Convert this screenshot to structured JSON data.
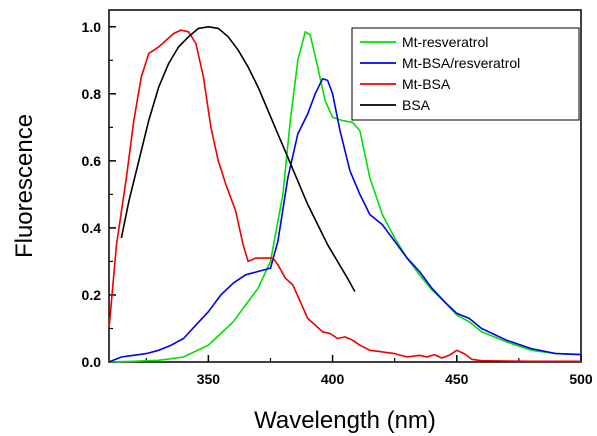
{
  "chart_data": {
    "type": "line",
    "xlabel": "Wavelength (nm)",
    "ylabel": "Fluorescence",
    "xlim": [
      310,
      500
    ],
    "ylim": [
      0,
      1.05
    ],
    "xticks": [
      350,
      400,
      450,
      500
    ],
    "yticks": [
      0.0,
      0.2,
      0.4,
      0.6,
      0.8,
      1.0
    ],
    "xtick_labels": [
      "350",
      "400",
      "450",
      "500"
    ],
    "ytick_labels": [
      "0.0",
      "0.2",
      "0.4",
      "0.6",
      "0.8",
      "1.0"
    ],
    "grid": false,
    "legend_position": "top-right",
    "series": [
      {
        "name": "Mt-resveratrol",
        "color": "#00e000",
        "points": [
          [
            310,
            0.0
          ],
          [
            320,
            0.002
          ],
          [
            330,
            0.005
          ],
          [
            340,
            0.015
          ],
          [
            350,
            0.05
          ],
          [
            355,
            0.085
          ],
          [
            360,
            0.12
          ],
          [
            365,
            0.17
          ],
          [
            370,
            0.22
          ],
          [
            375,
            0.3
          ],
          [
            380,
            0.5
          ],
          [
            383,
            0.72
          ],
          [
            386,
            0.9
          ],
          [
            389,
            0.985
          ],
          [
            391,
            0.975
          ],
          [
            394,
            0.88
          ],
          [
            397,
            0.78
          ],
          [
            400,
            0.73
          ],
          [
            404,
            0.72
          ],
          [
            408,
            0.715
          ],
          [
            411,
            0.69
          ],
          [
            415,
            0.55
          ],
          [
            420,
            0.44
          ],
          [
            425,
            0.37
          ],
          [
            430,
            0.31
          ],
          [
            435,
            0.26
          ],
          [
            440,
            0.215
          ],
          [
            445,
            0.18
          ],
          [
            450,
            0.14
          ],
          [
            455,
            0.12
          ],
          [
            460,
            0.09
          ],
          [
            470,
            0.06
          ],
          [
            480,
            0.035
          ],
          [
            490,
            0.025
          ],
          [
            500,
            0.022
          ]
        ]
      },
      {
        "name": "Mt-BSA/resveratrol",
        "color": "#0000ee",
        "points": [
          [
            310,
            0.0
          ],
          [
            315,
            0.015
          ],
          [
            320,
            0.02
          ],
          [
            325,
            0.025
          ],
          [
            330,
            0.035
          ],
          [
            335,
            0.05
          ],
          [
            340,
            0.07
          ],
          [
            345,
            0.11
          ],
          [
            350,
            0.15
          ],
          [
            355,
            0.2
          ],
          [
            360,
            0.235
          ],
          [
            365,
            0.26
          ],
          [
            370,
            0.27
          ],
          [
            375,
            0.28
          ],
          [
            378,
            0.36
          ],
          [
            382,
            0.55
          ],
          [
            386,
            0.68
          ],
          [
            390,
            0.74
          ],
          [
            393,
            0.8
          ],
          [
            396,
            0.845
          ],
          [
            398,
            0.84
          ],
          [
            400,
            0.8
          ],
          [
            403,
            0.69
          ],
          [
            407,
            0.57
          ],
          [
            411,
            0.5
          ],
          [
            415,
            0.44
          ],
          [
            420,
            0.41
          ],
          [
            425,
            0.36
          ],
          [
            430,
            0.31
          ],
          [
            435,
            0.27
          ],
          [
            440,
            0.22
          ],
          [
            445,
            0.18
          ],
          [
            450,
            0.145
          ],
          [
            455,
            0.13
          ],
          [
            460,
            0.1
          ],
          [
            470,
            0.065
          ],
          [
            480,
            0.04
          ],
          [
            490,
            0.025
          ],
          [
            500,
            0.022
          ]
        ]
      },
      {
        "name": "Mt-BSA",
        "color": "#ee0000",
        "points": [
          [
            310,
            0.1
          ],
          [
            313,
            0.35
          ],
          [
            317,
            0.55
          ],
          [
            320,
            0.72
          ],
          [
            323,
            0.85
          ],
          [
            326,
            0.92
          ],
          [
            330,
            0.94
          ],
          [
            333,
            0.96
          ],
          [
            336,
            0.98
          ],
          [
            339,
            0.99
          ],
          [
            342,
            0.985
          ],
          [
            345,
            0.95
          ],
          [
            348,
            0.85
          ],
          [
            351,
            0.7
          ],
          [
            354,
            0.6
          ],
          [
            357,
            0.53
          ],
          [
            361,
            0.45
          ],
          [
            364,
            0.35
          ],
          [
            366,
            0.3
          ],
          [
            369,
            0.31
          ],
          [
            372,
            0.31
          ],
          [
            376,
            0.31
          ],
          [
            378,
            0.29
          ],
          [
            381,
            0.25
          ],
          [
            384,
            0.23
          ],
          [
            387,
            0.18
          ],
          [
            390,
            0.13
          ],
          [
            393,
            0.11
          ],
          [
            396,
            0.09
          ],
          [
            399,
            0.085
          ],
          [
            402,
            0.07
          ],
          [
            405,
            0.075
          ],
          [
            408,
            0.065
          ],
          [
            411,
            0.05
          ],
          [
            415,
            0.035
          ],
          [
            420,
            0.03
          ],
          [
            425,
            0.025
          ],
          [
            430,
            0.015
          ],
          [
            435,
            0.02
          ],
          [
            438,
            0.015
          ],
          [
            441,
            0.022
          ],
          [
            444,
            0.012
          ],
          [
            447,
            0.02
          ],
          [
            450,
            0.035
          ],
          [
            453,
            0.025
          ],
          [
            456,
            0.008
          ],
          [
            460,
            0.004
          ],
          [
            470,
            0.003
          ],
          [
            480,
            0.002
          ],
          [
            490,
            0.002
          ],
          [
            500,
            0.002
          ]
        ]
      },
      {
        "name": "BSA",
        "color": "#000000",
        "points": [
          [
            315,
            0.37
          ],
          [
            318,
            0.48
          ],
          [
            322,
            0.6
          ],
          [
            326,
            0.72
          ],
          [
            330,
            0.82
          ],
          [
            334,
            0.89
          ],
          [
            338,
            0.94
          ],
          [
            342,
            0.97
          ],
          [
            346,
            0.995
          ],
          [
            350,
            1.0
          ],
          [
            354,
            0.995
          ],
          [
            358,
            0.97
          ],
          [
            362,
            0.93
          ],
          [
            366,
            0.88
          ],
          [
            370,
            0.82
          ],
          [
            374,
            0.75
          ],
          [
            378,
            0.68
          ],
          [
            382,
            0.61
          ],
          [
            386,
            0.54
          ],
          [
            390,
            0.47
          ],
          [
            394,
            0.41
          ],
          [
            398,
            0.35
          ],
          [
            402,
            0.3
          ],
          [
            406,
            0.25
          ],
          [
            409,
            0.21
          ]
        ]
      }
    ]
  }
}
